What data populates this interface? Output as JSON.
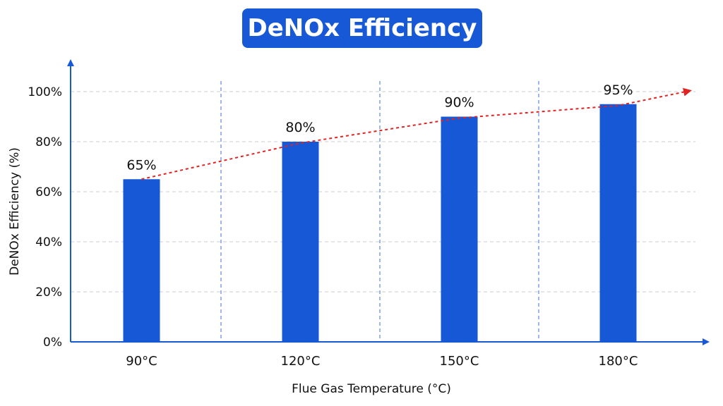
{
  "chart_data": {
    "type": "bar",
    "title": "DeNOx Efficiency",
    "xlabel": "Flue Gas Temperature (°C)",
    "ylabel": "DeNOx Efficiency (%)",
    "categories": [
      "90°C",
      "120°C",
      "150°C",
      "180°C"
    ],
    "values": [
      65,
      80,
      90,
      95
    ],
    "data_labels": [
      "65%",
      "80%",
      "90%",
      "95%"
    ],
    "ylim": [
      0,
      100
    ],
    "yticks": [
      0,
      20,
      40,
      60,
      80,
      100
    ],
    "ytick_labels": [
      "0%",
      "20%",
      "40%",
      "60%",
      "80%",
      "100%"
    ],
    "grid": "horizontal dashed, vertical dashed category separators",
    "trend_line": "dashed red arrow rising from first to last bar",
    "colors": {
      "bar": "#1658d6",
      "axis": "#1658d6",
      "trend": "#e02424",
      "grid": "#c9ced6",
      "separator": "#3b6fd8"
    }
  }
}
